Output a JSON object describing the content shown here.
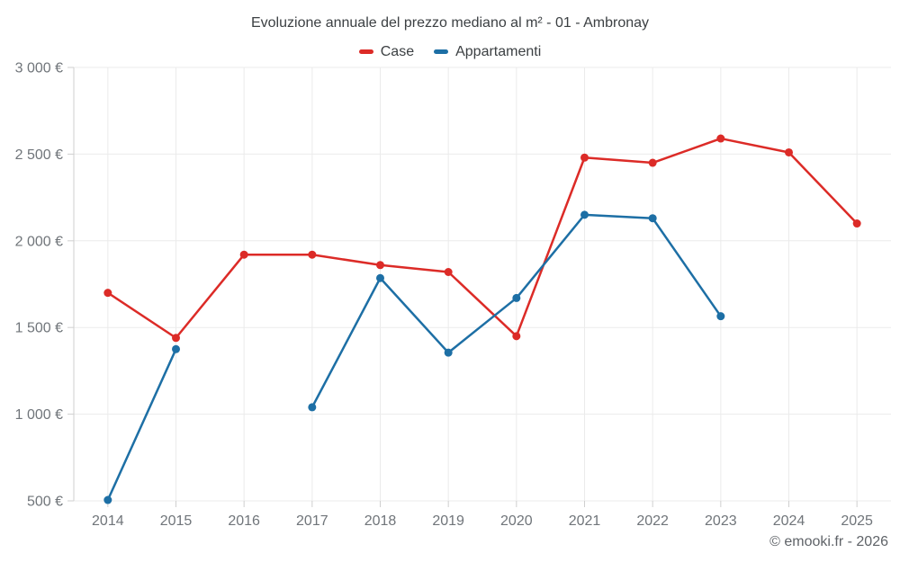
{
  "chart": {
    "title": "Evoluzione annuale del prezzo mediano al m² - 01 - Ambronay",
    "copyright": "© emooki.fr - 2026"
  },
  "chart_data": {
    "type": "line",
    "title": "Evoluzione annuale del prezzo mediano al m² - 01 - Ambronay",
    "categories": [
      "2014",
      "2015",
      "2016",
      "2017",
      "2018",
      "2019",
      "2020",
      "2021",
      "2022",
      "2023",
      "2024",
      "2025"
    ],
    "series": [
      {
        "name": "Case",
        "color": "#dc2b27",
        "values": [
          1700,
          1440,
          1920,
          1920,
          1860,
          1820,
          1450,
          2480,
          2450,
          2590,
          2510,
          2100
        ]
      },
      {
        "name": "Appartamenti",
        "color": "#1d6fa5",
        "values": [
          505,
          1375,
          null,
          1040,
          1785,
          1355,
          1670,
          2150,
          2130,
          1565,
          null,
          null
        ]
      }
    ],
    "xlabel": "",
    "ylabel": "",
    "ylim": [
      500,
      3000
    ],
    "y_ticks": [
      500,
      1000,
      1500,
      2000,
      2500,
      3000
    ],
    "y_tick_labels": [
      "500 €",
      "1 000 €",
      "1 500 €",
      "2 000 €",
      "2 500 €",
      "3 000 €"
    ],
    "grid": true,
    "legend_position": "top",
    "colors": {
      "grid": "#ebebeb",
      "axis": "#cfcfcf",
      "tick": "#cfcfcf",
      "axis_text": "#70757a",
      "title_text": "#3c4043"
    }
  }
}
